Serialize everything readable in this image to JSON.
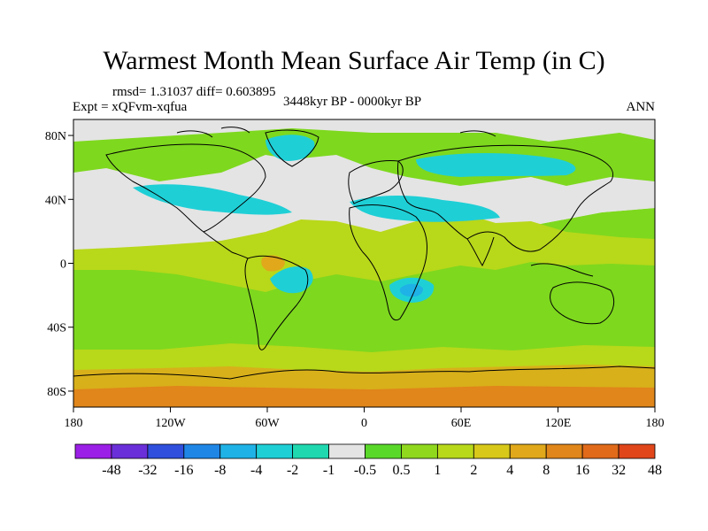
{
  "title": "Warmest Month Mean Surface Air Temp (in C)",
  "stats": "rmsd= 1.31037 diff= 0.603895",
  "experiment": "Expt = xQFvm-xqfua",
  "period": "3448kyr BP - 0000kyr BP",
  "season": "ANN",
  "map": {
    "projection": "cylindrical equidistant",
    "lon_range": [
      -180,
      180
    ],
    "lat_range": [
      -90,
      90
    ],
    "x_ticks": [
      {
        "lon": -180,
        "label": "180"
      },
      {
        "lon": -120,
        "label": "120W"
      },
      {
        "lon": -60,
        "label": "60W"
      },
      {
        "lon": 0,
        "label": "0"
      },
      {
        "lon": 60,
        "label": "60E"
      },
      {
        "lon": 120,
        "label": "120E"
      },
      {
        "lon": 180,
        "label": "180"
      }
    ],
    "y_ticks": [
      {
        "lat": 80,
        "label": "80N"
      },
      {
        "lat": 40,
        "label": "40N"
      },
      {
        "lat": 0,
        "label": "0"
      },
      {
        "lat": -40,
        "label": "40S"
      },
      {
        "lat": -80,
        "label": "80S"
      }
    ]
  },
  "colorbar": {
    "levels": [
      "-48",
      "-32",
      "-16",
      "-8",
      "-4",
      "-2",
      "-1",
      "-0.5",
      "0.5",
      "1",
      "2",
      "4",
      "8",
      "16",
      "32",
      "48"
    ],
    "colors": [
      "#9b1fe6",
      "#6a2fd8",
      "#2f4fdc",
      "#1f86e6",
      "#1fb2e6",
      "#1fcfd6",
      "#1fd8b0",
      "#e4e4e4",
      "#5ad82a",
      "#8fd81e",
      "#b8d81a",
      "#d8c81a",
      "#e0a81a",
      "#e0861a",
      "#e06a1a",
      "#e0461a"
    ]
  }
}
